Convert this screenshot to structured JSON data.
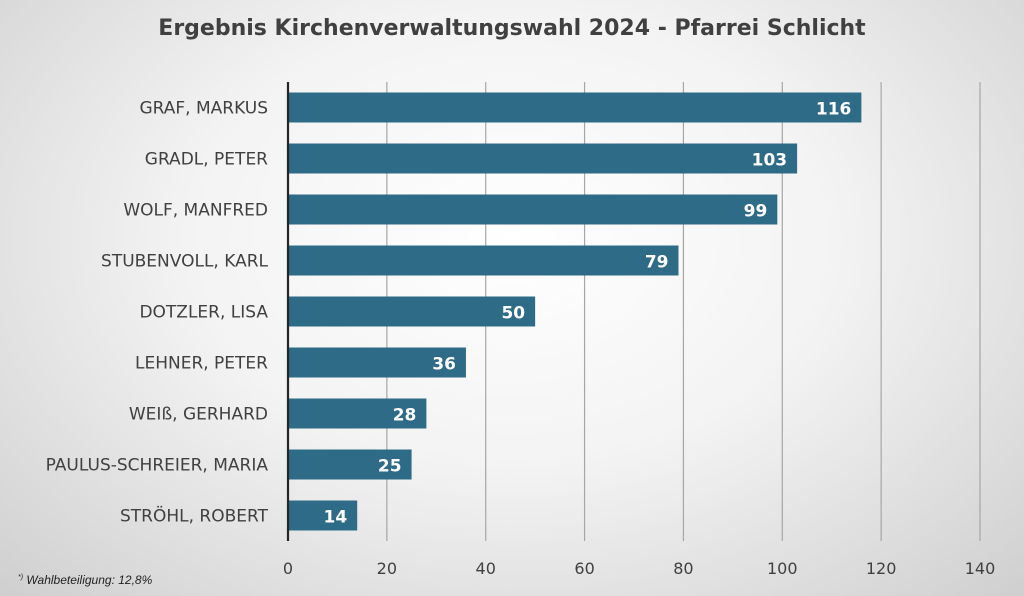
{
  "chart_data": {
    "type": "bar",
    "orientation": "horizontal",
    "title": "Ergebnis Kirchenverwaltungswahl 2024 - Pfarrei Schlicht",
    "categories": [
      "GRAF, MARKUS",
      "GRADL, PETER",
      "WOLF, MANFRED",
      "STUBENVOLL, KARL",
      "DOTZLER, LISA",
      "LEHNER, PETER",
      "WEIß, GERHARD",
      "PAULUS-SCHREIER, MARIA",
      "STRÖHL, ROBERT"
    ],
    "values": [
      116,
      103,
      99,
      79,
      50,
      36,
      28,
      25,
      14
    ],
    "xlim": [
      0,
      140
    ],
    "xticks": [
      0,
      20,
      40,
      60,
      80,
      100,
      120,
      140
    ],
    "grid": "vertical",
    "bar_color": "#2e6b87",
    "data_label_color": "#ffffff",
    "footnote_mark": "*)",
    "footnote": "Wahlbeteiligung: 12,8%"
  }
}
